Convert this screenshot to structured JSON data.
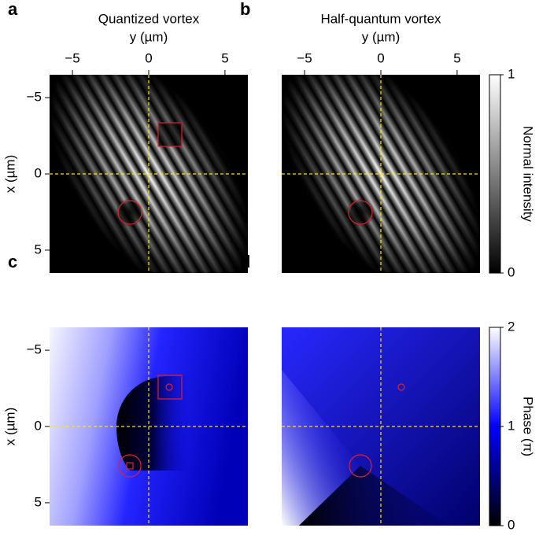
{
  "chart_data": [
    {
      "type": "image",
      "panel": "a",
      "title": "Quantized vortex",
      "xlabel": "y (µm)",
      "ylabel": "x (µm)",
      "xlim": [
        -6.5,
        6.5
      ],
      "ylim": [
        -6.5,
        6.5
      ],
      "xticks": [
        {
          "value": -5,
          "label": "−5"
        },
        0,
        5
      ],
      "yticks": [
        {
          "value": -5,
          "label": "−5"
        },
        0,
        5
      ]
    },
    {
      "type": "image",
      "panel": "b",
      "title": "Half-quantum vortex",
      "xlabel": "y (µm)",
      "xlim": [
        -6.5,
        6.5
      ],
      "ylim": [
        -6.5,
        6.5
      ],
      "xticks": [
        {
          "value": -5,
          "label": "−5"
        },
        0,
        5
      ],
      "colorbar": {
        "label": "Normal intensity",
        "lim": [
          0,
          1
        ],
        "ticks": [
          0,
          1
        ]
      }
    },
    {
      "type": "image",
      "panel": "c",
      "ylabel": "x (µm)",
      "xlim": [
        -6.5,
        6.5
      ],
      "ylim": [
        -6.5,
        6.5
      ],
      "yticks": [
        {
          "value": -5,
          "label": "−5"
        },
        0,
        5
      ]
    },
    {
      "type": "image",
      "panel": "d",
      "xlim": [
        -6.5,
        6.5
      ],
      "ylim": [
        -6.5,
        6.5
      ],
      "colorbar": {
        "label": "Phase (π)",
        "lim": [
          0,
          2
        ],
        "ticks": [
          0,
          1,
          2
        ]
      }
    }
  ]
}
